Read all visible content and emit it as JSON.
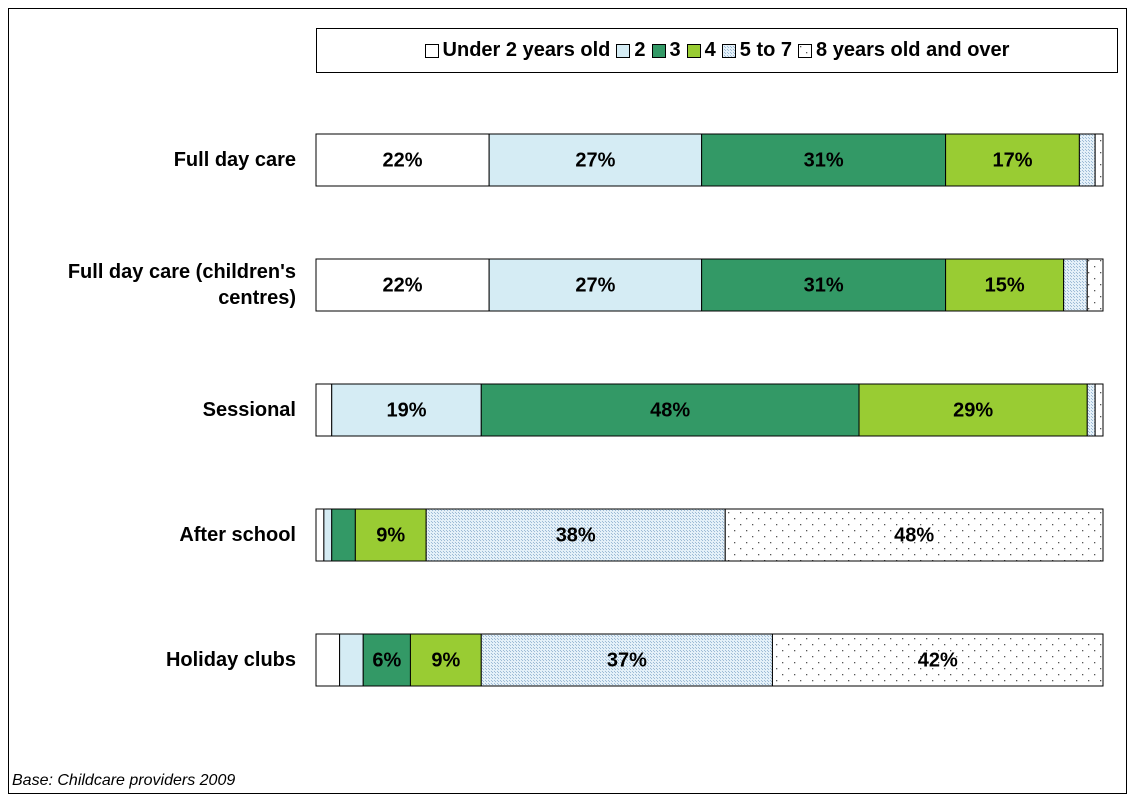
{
  "chart_data": {
    "type": "stacked-barh",
    "categories": [
      "Full day care",
      "Full day care (children's centres)",
      "Sessional",
      "After school",
      "Holiday clubs"
    ],
    "series": [
      {
        "name": "Under 2 years old",
        "color": "#ffffff",
        "values": [
          22,
          22,
          2,
          1,
          3
        ],
        "value_labels": [
          "22%",
          "22%",
          null,
          null,
          null
        ]
      },
      {
        "name": "2",
        "color": "#d5ecf4",
        "values": [
          27,
          27,
          19,
          1,
          3
        ],
        "value_labels": [
          "27%",
          "27%",
          "19%",
          null,
          null
        ]
      },
      {
        "name": "3",
        "color": "#339966",
        "values": [
          31,
          31,
          48,
          3,
          6
        ],
        "value_labels": [
          "31%",
          "31%",
          "48%",
          null,
          "6%"
        ]
      },
      {
        "name": "4",
        "color": "#99cc33",
        "values": [
          17,
          15,
          29,
          9,
          9
        ],
        "value_labels": [
          "17%",
          "15%",
          "29%",
          "9%",
          "9%"
        ]
      },
      {
        "name": "5 to 7",
        "color": "#cfe4f4",
        "pattern": "fine",
        "values": [
          2,
          3,
          1,
          38,
          37
        ],
        "value_labels": [
          null,
          null,
          null,
          "38%",
          "37%"
        ]
      },
      {
        "name": "8 years old and over",
        "color": "#ffffff",
        "pattern": "dots",
        "values": [
          1,
          2,
          1,
          48,
          42
        ],
        "value_labels": [
          null,
          null,
          null,
          "48%",
          "42%"
        ]
      }
    ],
    "xlim": [
      0,
      100
    ],
    "note": "Base: Childcare providers 2009"
  }
}
